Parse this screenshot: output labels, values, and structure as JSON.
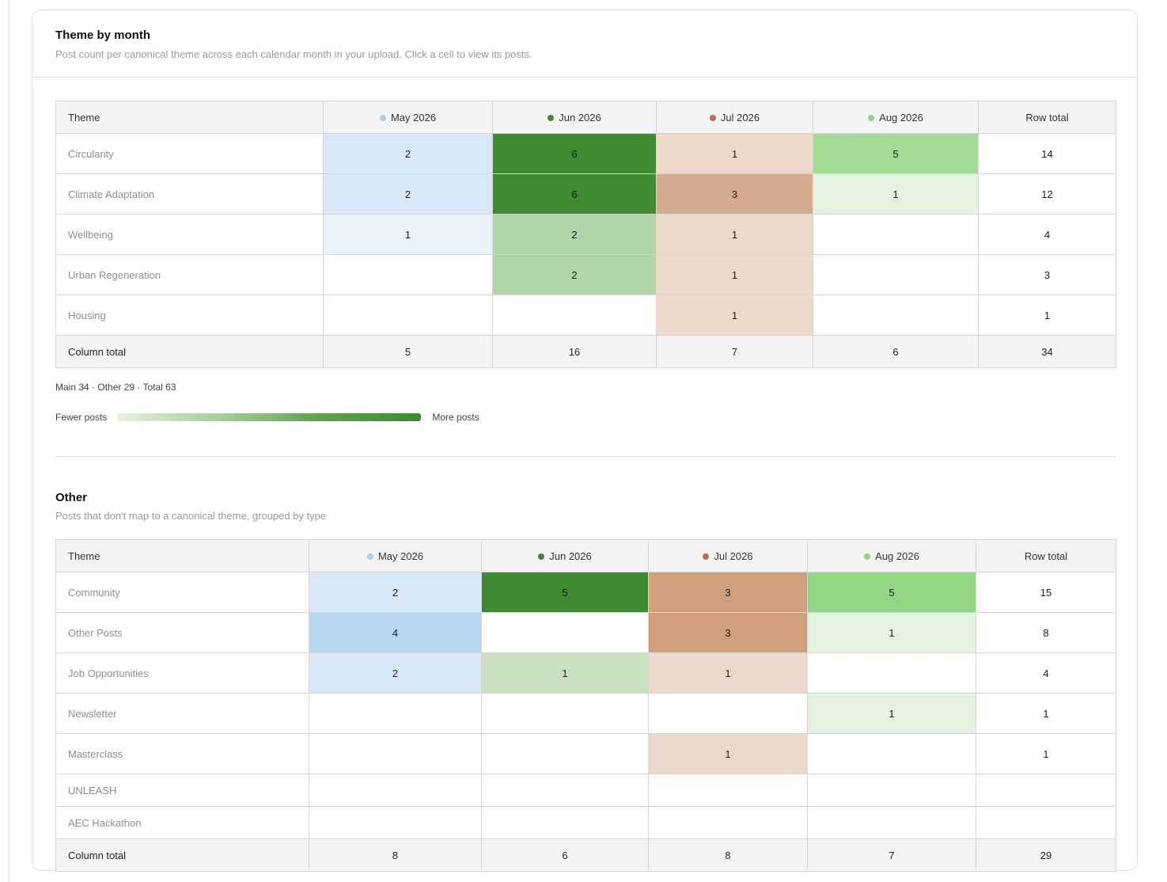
{
  "main": {
    "title": "Theme by month",
    "subtitle": "Post count per canonical theme across each calendar month in your upload. Click a cell to view its posts.",
    "header_theme": "Theme",
    "header_row_total": "Row total",
    "months": [
      {
        "label": "May 2026",
        "dot_color": "#a9cde9"
      },
      {
        "label": "Jun 2026",
        "dot_color": "#3d8a30"
      },
      {
        "label": "Jul 2026",
        "dot_color": "#b5734a"
      },
      {
        "label": "Aug 2026",
        "dot_color": "#93d483"
      }
    ],
    "rows": [
      {
        "theme": "Circularity",
        "values": [
          "2",
          "6",
          "1",
          "5"
        ],
        "colors": [
          "#d8e8f6",
          "#3e8b31",
          "#ecd9cc",
          "#a2db93"
        ],
        "total": "14"
      },
      {
        "theme": "Climate Adaptation",
        "values": [
          "2",
          "6",
          "3",
          "1"
        ],
        "colors": [
          "#d8e8f6",
          "#3e8b31",
          "#d6ac90",
          "#e3f3dd"
        ],
        "total": "12"
      },
      {
        "theme": "Wellbeing",
        "values": [
          "1",
          "2",
          "1",
          ""
        ],
        "colors": [
          "#e8f2fb",
          "#b2d4a9",
          "#ecd9cc",
          ""
        ],
        "total": "4"
      },
      {
        "theme": "Urban Regeneration",
        "values": [
          "",
          "2",
          "1",
          ""
        ],
        "colors": [
          "",
          "#b2d4a9",
          "#ecd9cc",
          ""
        ],
        "total": "3"
      },
      {
        "theme": "Housing",
        "values": [
          "",
          "",
          "1",
          ""
        ],
        "colors": [
          "",
          "",
          "#ecd9cc",
          ""
        ],
        "total": "1"
      }
    ],
    "footer_label": "Column total",
    "column_totals": [
      "5",
      "16",
      "7",
      "6"
    ],
    "grand_total": "34",
    "summary": "Main 34 · Other 29 · Total 63",
    "legend_low": "Fewer posts",
    "legend_high": "More posts"
  },
  "other": {
    "title": "Other",
    "subtitle": "Posts that don't map to a canonical theme, grouped by type",
    "header_theme": "Theme",
    "header_row_total": "Row total",
    "months": [
      {
        "label": "May 2026",
        "dot_color": "#a9cde9"
      },
      {
        "label": "Jun 2026",
        "dot_color": "#3d8a30"
      },
      {
        "label": "Jul 2026",
        "dot_color": "#b5734a"
      },
      {
        "label": "Aug 2026",
        "dot_color": "#93d483"
      }
    ],
    "rows": [
      {
        "theme": "Community",
        "values": [
          "2",
          "5",
          "3",
          "5"
        ],
        "colors": [
          "#d8e8f6",
          "#3e8b31",
          "#cf9f7e",
          "#93d685"
        ],
        "total": "15"
      },
      {
        "theme": "Other Posts",
        "values": [
          "4",
          "",
          "3",
          "1"
        ],
        "colors": [
          "#b8d8f0",
          "",
          "#cf9f7e",
          "#e3f3dd"
        ],
        "total": "8"
      },
      {
        "theme": "Job Opportunities",
        "values": [
          "2",
          "1",
          "1",
          ""
        ],
        "colors": [
          "#d8e8f6",
          "#c9e0c1",
          "#ecd9cc",
          ""
        ],
        "total": "4"
      },
      {
        "theme": "Newsletter",
        "values": [
          "",
          "",
          "",
          "1"
        ],
        "colors": [
          "",
          "",
          "",
          "#e3f3dd"
        ],
        "total": "1"
      },
      {
        "theme": "Masterclass",
        "values": [
          "",
          "",
          "1",
          ""
        ],
        "colors": [
          "",
          "",
          "#ecd9cc",
          ""
        ],
        "total": "1"
      },
      {
        "theme": "UNLEASH",
        "values": [
          "",
          "",
          "",
          ""
        ],
        "colors": [
          "",
          "",
          "",
          ""
        ],
        "total": ""
      },
      {
        "theme": "AEC Hackathon",
        "values": [
          "",
          "",
          "",
          ""
        ],
        "colors": [
          "",
          "",
          "",
          ""
        ],
        "total": ""
      }
    ],
    "footer_label": "Column total",
    "column_totals": [
      "8",
      "6",
      "8",
      "7"
    ],
    "grand_total": "29"
  }
}
